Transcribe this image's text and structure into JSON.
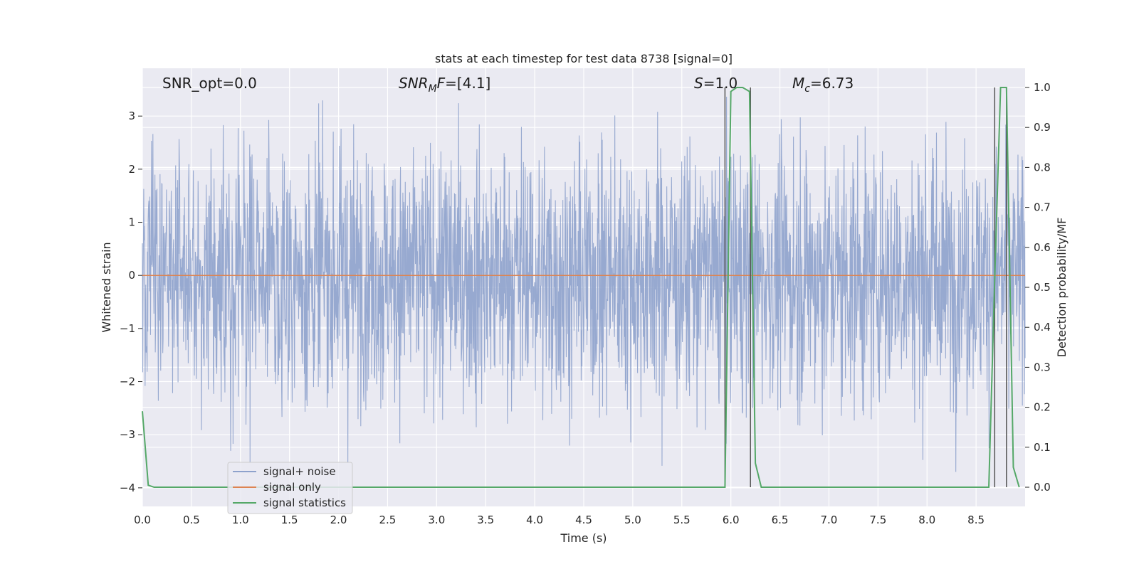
{
  "chart_data": {
    "type": "line",
    "title": "stats at each timestep for test data 8738 [signal=0]",
    "xlabel": "Time (s)",
    "ylabel_left": "Whitened strain",
    "ylabel_right": "Detection probability/MF",
    "xlim": [
      0.0,
      9.0
    ],
    "ylim_left": [
      -4.35,
      3.9
    ],
    "ylim_right": [
      -0.048,
      1.048
    ],
    "x_ticks": [
      "0.0",
      "0.5",
      "1.0",
      "1.5",
      "2.0",
      "2.5",
      "3.0",
      "3.5",
      "4.0",
      "4.5",
      "5.0",
      "5.5",
      "6.0",
      "6.5",
      "7.0",
      "7.5",
      "8.0",
      "8.5"
    ],
    "y_left_ticks": [
      "−4",
      "−3",
      "−2",
      "−1",
      "0",
      "1",
      "2",
      "3"
    ],
    "y_right_ticks": [
      "0.0",
      "0.1",
      "0.2",
      "0.3",
      "0.4",
      "0.5",
      "0.6",
      "0.7",
      "0.8",
      "0.9",
      "1.0"
    ],
    "grid": true,
    "legend_position": "lower-left",
    "annotations": {
      "snr_opt": "SNR_opt=0.0",
      "snr_mf": "SNR",
      "snr_mf_sub": "M",
      "snr_mf_f": "F",
      "snr_mf_val": "=[4.1]",
      "s_sym": "S",
      "s_val": "=1.0",
      "mc_sym": "M",
      "mc_sub": "c",
      "mc_val": "=6.73"
    },
    "series": [
      {
        "name": "signal+ noise",
        "color": "#8ea2cc",
        "axis": "left",
        "description_of_values": "whitened noise, roughly within [-2, 2] with occasional spikes to about ±3.5",
        "amplitude_envelope": 1.2,
        "peak_extremes": [
          -3.7,
          3.5
        ]
      },
      {
        "name": "signal only",
        "color": "#dd8452",
        "axis": "left",
        "x": [
          0.0,
          9.0
        ],
        "y": [
          0.0,
          0.0
        ]
      },
      {
        "name": "signal statistics",
        "color": "#55a868",
        "axis": "right",
        "x": [
          0.0,
          0.06,
          0.12,
          0.5,
          1.0,
          2.0,
          3.0,
          4.0,
          5.0,
          5.5,
          5.94,
          6.0,
          6.06,
          6.12,
          6.19,
          6.25,
          6.31,
          6.5,
          7.0,
          8.0,
          8.5,
          8.63,
          8.69,
          8.75,
          8.81,
          8.88,
          8.94
        ],
        "y": [
          0.19,
          0.005,
          0.0,
          0.0,
          0.0,
          0.0,
          0.0,
          0.0,
          0.0,
          0.0,
          0.0,
          0.99,
          1.0,
          1.0,
          0.99,
          0.06,
          0.0,
          0.0,
          0.0,
          0.0,
          0.0,
          0.0,
          0.52,
          1.0,
          1.0,
          0.05,
          0.0
        ]
      }
    ],
    "vertical_lines": {
      "color": "#555555",
      "x": [
        5.94,
        6.2,
        8.69,
        8.81
      ],
      "y_right_range": [
        0.0,
        1.0
      ]
    }
  }
}
